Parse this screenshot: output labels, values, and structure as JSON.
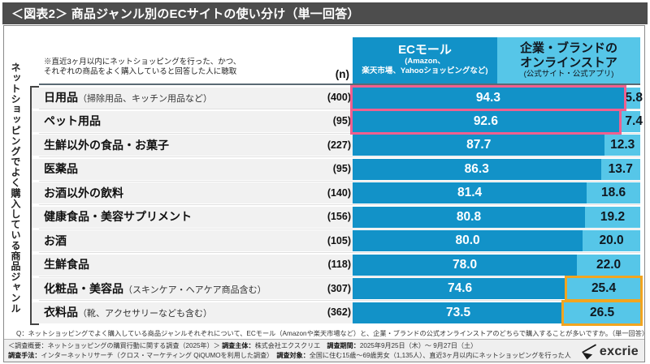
{
  "banner": {
    "title": "＜図表2＞ 商品ジャンル別のECサイトの使い分け（単一回答）"
  },
  "side_label": "ネットショッピングでよく購入している商品ジャンル",
  "note": {
    "line1": "※直近3ヶ月以内にネットショッピングを行った、かつ、",
    "line2": "それぞれの商品をよく購入していると回答した人に聴取"
  },
  "columns": {
    "n_label": "(n)",
    "ec_mall": {
      "title": "ECモール",
      "sub1": "(Amazon、",
      "sub2": "楽天市場、Yahooショッピングなど)"
    },
    "brand_store": {
      "title1": "企業・ブランドの",
      "title2": "オンラインストア",
      "sub": "(公式サイト・公式アプリ)"
    }
  },
  "rows": [
    {
      "label": "日用品",
      "paren": "（掃除用品、キッチン用品など）",
      "n": "(400)",
      "ec": 94.3,
      "brand": 5.8,
      "highlight": "pink"
    },
    {
      "label": "ペット用品",
      "paren": "",
      "n": "(95)",
      "ec": 92.6,
      "brand": 7.4,
      "highlight": "pink"
    },
    {
      "label": "生鮮以外の食品・お菓子",
      "paren": "",
      "n": "(227)",
      "ec": 87.7,
      "brand": 12.3,
      "highlight": ""
    },
    {
      "label": "医薬品",
      "paren": "",
      "n": "(95)",
      "ec": 86.3,
      "brand": 13.7,
      "highlight": ""
    },
    {
      "label": "お酒以外の飲料",
      "paren": "",
      "n": "(140)",
      "ec": 81.4,
      "brand": 18.6,
      "highlight": ""
    },
    {
      "label": "健康食品・美容サプリメント",
      "paren": "",
      "n": "(156)",
      "ec": 80.8,
      "brand": 19.2,
      "highlight": ""
    },
    {
      "label": "お酒",
      "paren": "",
      "n": "(105)",
      "ec": 80.0,
      "brand": 20.0,
      "highlight": ""
    },
    {
      "label": "生鮮食品",
      "paren": "",
      "n": "(118)",
      "ec": 78.0,
      "brand": 22.0,
      "highlight": ""
    },
    {
      "label": "化粧品・美容品",
      "paren": "（スキンケア・ヘアケア商品含む）",
      "n": "(307)",
      "ec": 74.6,
      "brand": 25.4,
      "highlight": "orange"
    },
    {
      "label": "衣料品",
      "paren": "（靴、アクセサリーなども含む）",
      "n": "(362)",
      "ec": 73.5,
      "brand": 26.5,
      "highlight": "orange"
    }
  ],
  "q_note": "Q：ネットショッピングでよく購入している商品ジャンルそれぞれについて、ECモール（Amazonや楽天市場など）と、企業・ブランドの公式オンラインストアのどちらで購入することが多いですか。（単一回答）",
  "footer": {
    "line1": [
      {
        "t": "＜調査概要：ネットショッピングの購買行動に関する調査（2025年）＞ ",
        "b": false
      },
      {
        "t": "調査主体：",
        "b": true
      },
      {
        "t": "株式会社エクスクリエ　",
        "b": false
      },
      {
        "t": "調査期間：",
        "b": true
      },
      {
        "t": "2025年9月25日（木）～ 9月27日（土）",
        "b": false
      }
    ],
    "line2": [
      {
        "t": "調査手法：",
        "b": true
      },
      {
        "t": "インターネットリサーチ（クロス・マーケティング QiQUMOを利用した調査）　",
        "b": false
      },
      {
        "t": "調査対象：",
        "b": true
      },
      {
        "t": "全国に住む15歳～69歳男女（1,135人）、直近3ヶ月以内にネットショッピングを行った人",
        "b": false
      }
    ]
  },
  "logo": {
    "text": "excrie"
  },
  "colors": {
    "ec_mall_bar": "#1292c8",
    "brand_store_bar": "#56c6e8",
    "pink_highlight": "#f0608f",
    "orange_highlight": "#f2a51f",
    "banner_bg": "#4d4d4d"
  },
  "chart_data": {
    "type": "bar",
    "orientation": "horizontal-stacked",
    "title": "＜図表2＞ 商品ジャンル別のECサイトの使い分け（単一回答）",
    "categories": [
      "日用品（掃除用品、キッチン用品など）",
      "ペット用品",
      "生鮮以外の食品・お菓子",
      "医薬品",
      "お酒以外の飲料",
      "健康食品・美容サプリメント",
      "お酒",
      "生鮮食品",
      "化粧品・美容品（スキンケア・ヘアケア商品含む）",
      "衣料品（靴、アクセサリーなども含む）"
    ],
    "n": [
      400,
      95,
      227,
      95,
      140,
      156,
      105,
      118,
      307,
      362
    ],
    "series": [
      {
        "name": "ECモール（Amazon、楽天市場、Yahooショッピングなど）",
        "values": [
          94.3,
          92.6,
          87.7,
          86.3,
          81.4,
          80.8,
          80.0,
          78.0,
          74.6,
          73.5
        ]
      },
      {
        "name": "企業・ブランドのオンラインストア（公式サイト・公式アプリ）",
        "values": [
          5.8,
          7.4,
          12.3,
          13.7,
          18.6,
          19.2,
          20.0,
          22.0,
          25.4,
          26.5
        ]
      }
    ],
    "xlim": [
      0,
      100
    ],
    "unit": "%"
  }
}
